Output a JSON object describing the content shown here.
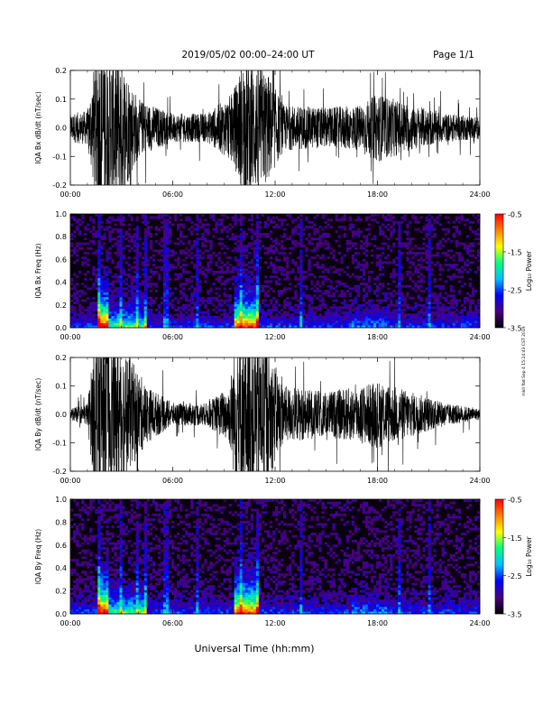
{
  "header": {
    "date_range": "2019/05/02  00:00–24:00 UT",
    "page": "Page 1/1"
  },
  "side_note": "mkll fbd Sep 4 15:24:43 CST 2019",
  "xlabel": "Universal Time (hh:mm)",
  "colors": {
    "trace": "#000000",
    "frame": "#000000",
    "spec_bg": "#0a0010"
  },
  "colorbar": {
    "label": "Log₁₀ Power",
    "ticks": [
      "-0.5",
      "-1.5",
      "-2.5",
      "-3.5"
    ],
    "range": [
      -3.5,
      -0.5
    ],
    "colors": [
      "#000000",
      "#4b0082",
      "#0000ff",
      "#00c0ff",
      "#00ff80",
      "#ffff00",
      "#ff8000",
      "#ff0000"
    ]
  },
  "chart_data": [
    {
      "type": "line",
      "ylabel": "IQA Bx dB/dt (nT/sec)",
      "xlim": [
        0,
        24
      ],
      "ylim": [
        -0.2,
        0.2
      ],
      "xticks": [
        "00:00",
        "06:00",
        "12:00",
        "18:00",
        "24:00"
      ],
      "yticks": [
        "0.2",
        "0.1",
        "0.0",
        "-0.1",
        "-0.2"
      ],
      "envelope": [
        [
          0.0,
          0.05
        ],
        [
          1.0,
          0.06
        ],
        [
          1.6,
          0.3
        ],
        [
          3.0,
          0.25
        ],
        [
          4.0,
          0.1
        ],
        [
          6.0,
          0.05
        ],
        [
          8.0,
          0.05
        ],
        [
          9.5,
          0.12
        ],
        [
          10.2,
          0.25
        ],
        [
          11.5,
          0.2
        ],
        [
          12.5,
          0.08
        ],
        [
          15.0,
          0.07
        ],
        [
          17.0,
          0.08
        ],
        [
          18.0,
          0.12
        ],
        [
          20.0,
          0.08
        ],
        [
          22.0,
          0.05
        ],
        [
          24.0,
          0.04
        ]
      ]
    },
    {
      "type": "heatmap",
      "ylabel": "IQA Bx Freq (Hz)",
      "xlim": [
        0,
        24
      ],
      "ylim": [
        0,
        1.0
      ],
      "xticks": [
        "00:00",
        "06:00",
        "12:00",
        "18:00",
        "24:00"
      ],
      "yticks": [
        "1.0",
        "0.8",
        "0.6",
        "0.4",
        "0.2",
        "0.0"
      ]
    },
    {
      "type": "line",
      "ylabel": "IQA By dB/dt (nT/sec)",
      "xlim": [
        0,
        24
      ],
      "ylim": [
        -0.2,
        0.2
      ],
      "xticks": [
        "00:00",
        "06:00",
        "12:00",
        "18:00",
        "24:00"
      ],
      "yticks": [
        "0.2",
        "0.1",
        "0.0",
        "-0.1",
        "-0.2"
      ],
      "envelope": [
        [
          0.0,
          0.02
        ],
        [
          1.0,
          0.04
        ],
        [
          1.5,
          0.3
        ],
        [
          3.0,
          0.25
        ],
        [
          4.5,
          0.1
        ],
        [
          6.0,
          0.04
        ],
        [
          8.0,
          0.04
        ],
        [
          9.3,
          0.1
        ],
        [
          9.8,
          0.3
        ],
        [
          11.5,
          0.25
        ],
        [
          12.5,
          0.1
        ],
        [
          15.0,
          0.08
        ],
        [
          17.0,
          0.1
        ],
        [
          18.0,
          0.12
        ],
        [
          20.0,
          0.08
        ],
        [
          22.0,
          0.04
        ],
        [
          24.0,
          0.02
        ]
      ]
    },
    {
      "type": "heatmap",
      "ylabel": "IQA By Freq (Hz)",
      "xlim": [
        0,
        24
      ],
      "ylim": [
        0,
        1.0
      ],
      "xticks": [
        "00:00",
        "06:00",
        "12:00",
        "18:00",
        "24:00"
      ],
      "yticks": [
        "1.0",
        "0.8",
        "0.6",
        "0.4",
        "0.2",
        "0.0"
      ]
    }
  ]
}
